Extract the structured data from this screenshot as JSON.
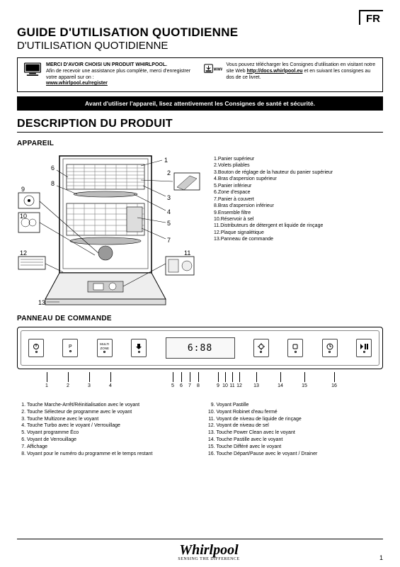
{
  "lang_tag": "FR",
  "title_main": "GUIDE D'UTILISATION QUOTIDIENNE",
  "title_sub": "D'UTILISATION QUOTIDIENNE",
  "info_left": {
    "bold": "MERCI D'AVOIR CHOISI UN PRODUIT WHIRLPOOL.",
    "text": "Afin de recevoir une assistance plus complète, merci d'enregistrer votre appareil sur on :",
    "link": "www.whirlpool.eu/register"
  },
  "info_right": {
    "text_a": "Vous pouvez télécharger les Consignes d'utilisation en visitant notre site Web ",
    "link": "http://docs.whirlpool.eu",
    "text_b": " et en suivant les consignes au dos de ce livret."
  },
  "warning_text": "Avant d'utiliser l'appareil, lisez attentivement les Consignes de santé et sécurité.",
  "section_desc": "DESCRIPTION DU PRODUIT",
  "section_app": "APPAREIL",
  "parts": [
    "Panier supérieur",
    "Volets pliables",
    "Bouton de réglage de la hauteur du panier supérieur",
    "Bras d'aspersion supérieur",
    "Panier inférieur",
    "Zone d'espace",
    "Panier à couvert",
    "Bras d'aspersion inférieur",
    "Ensemble filtre",
    "Réservoir à sel",
    "Distributeurs de détergent et liquide de rinçage",
    "Plaque signalétique",
    "Panneau de commande"
  ],
  "section_panel": "PANNEAU DE COMMANDE",
  "display_text": "6:88",
  "panel_buttons": {
    "b2": "P",
    "b3_l1": "MULTI",
    "b3_l2": "ZONE"
  },
  "panel_ticks": [
    "1",
    "2",
    "3",
    "4",
    "5",
    "6",
    "7",
    "8",
    "9",
    "10",
    "11",
    "12",
    "13",
    "14",
    "15",
    "16"
  ],
  "panel_legend_left": [
    "Touche Marche-Arrêt/Réinitialisation avec le voyant",
    "Touche Sélecteur de programme avec le voyant",
    "Touche Multizone avec le voyant",
    "Touche Turbo avec le voyant / Verrouillage",
    "Voyant programme Éco",
    "Voyant de Verrouillage",
    "Affichage",
    "Voyant pour le numéro du programme et le temps restant"
  ],
  "panel_legend_right": [
    "Voyant Pastille",
    "Voyant Robinet d'eau fermé",
    "Voyant de niveau de liquide de rinçage",
    "Voyant de niveau de sel",
    "Touche Power Clean avec le voyant",
    "Touche Pastille avec le voyant",
    "Touche Différé avec le voyant",
    "Touche Départ/Pause avec le voyant / Drainer"
  ],
  "brand": "Whirlpool",
  "brand_tag": "SENSING THE DIFFERENCE",
  "page_num": "1",
  "colors": {
    "black": "#000000",
    "grey": "#888888"
  }
}
